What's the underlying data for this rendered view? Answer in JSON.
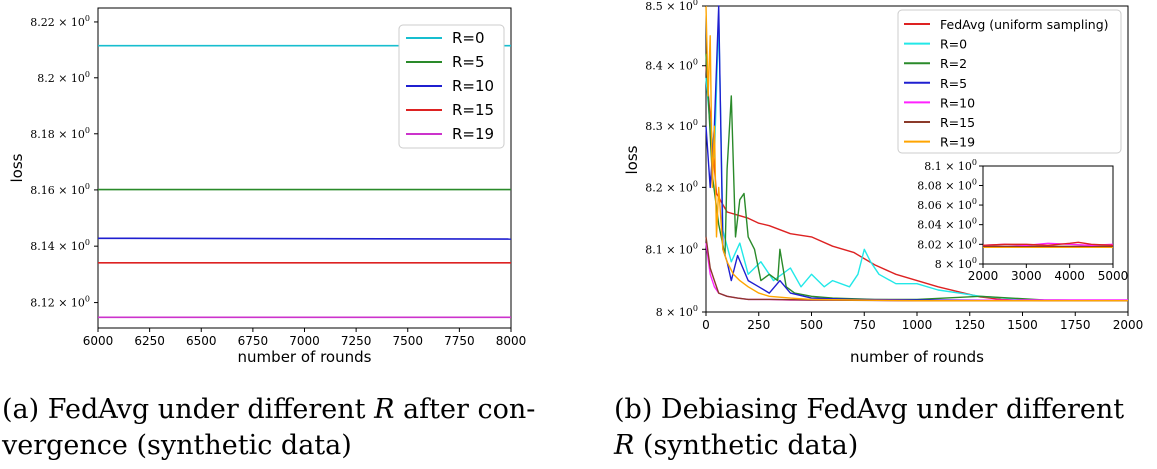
{
  "chart_data": [
    {
      "type": "line",
      "id": "a",
      "xlabel": "number of rounds",
      "ylabel": "loss",
      "xlim": [
        6000,
        8000
      ],
      "ylim": [
        8.111,
        8.225
      ],
      "yscale": "log",
      "xticks": [
        6000,
        6250,
        6500,
        6750,
        7000,
        7250,
        7500,
        7750,
        8000
      ],
      "yticks": [
        {
          "value": 8.12,
          "mantissa": "8.12"
        },
        {
          "value": 8.14,
          "mantissa": "8.14"
        },
        {
          "value": 8.16,
          "mantissa": "8.16"
        },
        {
          "value": 8.18,
          "mantissa": "8.18"
        },
        {
          "value": 8.2,
          "mantissa": "8.2"
        },
        {
          "value": 8.22,
          "mantissa": "8.22"
        }
      ],
      "tick_suffix": "× 10",
      "tick_exp": "0",
      "legend_position": "upper-right",
      "series": [
        {
          "name": "R=0",
          "color": "#17becf",
          "x": [
            6000,
            8000
          ],
          "y": [
            8.2115,
            8.2115
          ]
        },
        {
          "name": "R=5",
          "color": "#2a8a2a",
          "x": [
            6000,
            8000
          ],
          "y": [
            8.1601,
            8.1601
          ]
        },
        {
          "name": "R=10",
          "color": "#1f1fd0",
          "x": [
            6000,
            8000
          ],
          "y": [
            8.1428,
            8.1425
          ]
        },
        {
          "name": "R=15",
          "color": "#dd2222",
          "x": [
            6000,
            8000
          ],
          "y": [
            8.1341,
            8.1341
          ]
        },
        {
          "name": "R=19",
          "color": "#cc33cc",
          "x": [
            6000,
            8000
          ],
          "y": [
            8.1148,
            8.1148
          ]
        }
      ]
    },
    {
      "type": "line",
      "id": "b",
      "xlabel": "number of rounds",
      "ylabel": "loss",
      "xlim": [
        0,
        2000
      ],
      "ylim": [
        8.0,
        8.5
      ],
      "yscale": "log",
      "xticks": [
        0,
        250,
        500,
        750,
        1000,
        1250,
        1500,
        1750,
        2000
      ],
      "yticks": [
        {
          "value": 8.0,
          "mantissa": "8"
        },
        {
          "value": 8.1,
          "mantissa": "8.1"
        },
        {
          "value": 8.2,
          "mantissa": "8.2"
        },
        {
          "value": 8.3,
          "mantissa": "8.3"
        },
        {
          "value": 8.4,
          "mantissa": "8.4"
        },
        {
          "value": 8.5,
          "mantissa": "8.5"
        }
      ],
      "tick_suffix": "× 10",
      "tick_exp": "0",
      "legend_position": "upper-right",
      "series": [
        {
          "name": "FedAvg (uniform sampling)",
          "color": "#dd2222",
          "x": [
            0,
            50,
            100,
            150,
            200,
            250,
            300,
            400,
            500,
            600,
            700,
            800,
            900,
            1000,
            1100,
            1200,
            1300,
            1400,
            1600,
            2000
          ],
          "y": [
            8.4,
            8.19,
            8.16,
            8.155,
            8.15,
            8.142,
            8.138,
            8.125,
            8.12,
            8.105,
            8.095,
            8.075,
            8.06,
            8.05,
            8.04,
            8.032,
            8.024,
            8.02,
            8.018,
            8.018
          ]
        },
        {
          "name": "R=0",
          "color": "#22e8e8",
          "x": [
            0,
            20,
            40,
            60,
            80,
            120,
            160,
            200,
            260,
            320,
            400,
            450,
            500,
            560,
            600,
            680,
            720,
            750,
            780,
            820,
            900,
            1000,
            1100,
            1200,
            1300,
            1500,
            1700,
            2000
          ],
          "y": [
            8.38,
            8.3,
            8.25,
            8.48,
            8.13,
            8.08,
            8.11,
            8.06,
            8.08,
            8.05,
            8.07,
            8.04,
            8.06,
            8.04,
            8.05,
            8.04,
            8.06,
            8.1,
            8.08,
            8.06,
            8.045,
            8.045,
            8.035,
            8.03,
            8.025,
            8.02,
            8.018,
            8.018
          ]
        },
        {
          "name": "R=2",
          "color": "#2a8a2a",
          "x": [
            0,
            30,
            60,
            90,
            100,
            120,
            140,
            160,
            180,
            200,
            230,
            260,
            300,
            340,
            350,
            380,
            420,
            500,
            600,
            800,
            1000,
            1300,
            1600,
            2000
          ],
          "y": [
            8.42,
            8.22,
            8.14,
            8.09,
            8.23,
            8.35,
            8.12,
            8.18,
            8.19,
            8.12,
            8.1,
            8.05,
            8.06,
            8.05,
            8.1,
            8.04,
            8.03,
            8.025,
            8.022,
            8.02,
            8.02,
            8.025,
            8.019,
            8.018
          ]
        },
        {
          "name": "R=5",
          "color": "#1f1fd0",
          "x": [
            0,
            20,
            40,
            60,
            80,
            100,
            120,
            150,
            200,
            250,
            300,
            350,
            400,
            500,
            700,
            1000,
            2000
          ],
          "y": [
            8.3,
            8.2,
            8.3,
            8.5,
            8.1,
            8.08,
            8.05,
            8.09,
            8.05,
            8.04,
            8.03,
            8.05,
            8.03,
            8.022,
            8.02,
            8.019,
            8.018
          ]
        },
        {
          "name": "R=10",
          "color": "#ff22ff",
          "x": [
            0,
            20,
            40,
            60,
            100,
            150,
            200,
            300,
            400,
            600,
            1000,
            1500,
            2000
          ],
          "y": [
            8.11,
            8.06,
            8.04,
            8.03,
            8.025,
            8.022,
            8.02,
            8.02,
            8.019,
            8.019,
            8.018,
            8.019,
            8.019
          ]
        },
        {
          "name": "R=15",
          "color": "#8b3a2a",
          "x": [
            0,
            20,
            40,
            60,
            100,
            150,
            200,
            300,
            500,
            1000,
            2000
          ],
          "y": [
            8.12,
            8.07,
            8.05,
            8.03,
            8.025,
            8.022,
            8.02,
            8.02,
            8.019,
            8.018,
            8.018
          ]
        },
        {
          "name": "R=19",
          "color": "#ffa500",
          "x": [
            0,
            10,
            20,
            30,
            40,
            50,
            60,
            80,
            100,
            130,
            160,
            200,
            250,
            300,
            400,
            500,
            700,
            1000,
            2000
          ],
          "y": [
            8.5,
            8.35,
            8.45,
            8.2,
            8.3,
            8.12,
            8.2,
            8.1,
            8.08,
            8.06,
            8.05,
            8.04,
            8.03,
            8.025,
            8.022,
            8.02,
            8.019,
            8.018,
            8.018
          ]
        }
      ],
      "inset": {
        "xlim": [
          2000,
          5000
        ],
        "ylim": [
          8.0,
          8.1
        ],
        "xticks": [
          2000,
          3000,
          4000,
          5000
        ],
        "yticks": [
          {
            "value": 8.0,
            "mantissa": "8"
          },
          {
            "value": 8.02,
            "mantissa": "8.02"
          },
          {
            "value": 8.04,
            "mantissa": "8.04"
          },
          {
            "value": 8.06,
            "mantissa": "8.06"
          },
          {
            "value": 8.08,
            "mantissa": "8.08"
          },
          {
            "value": 8.1,
            "mantissa": "8.1"
          }
        ],
        "series": [
          {
            "name": "R=19",
            "color": "#ffa500",
            "x": [
              2000,
              5000
            ],
            "y": [
              8.017,
              8.017
            ]
          },
          {
            "name": "R=15",
            "color": "#8b3a2a",
            "x": [
              2000,
              5000
            ],
            "y": [
              8.018,
              8.018
            ]
          },
          {
            "name": "R=10",
            "color": "#ff22ff",
            "x": [
              2000,
              2500,
              3000,
              3500,
              4000,
              4500,
              5000
            ],
            "y": [
              8.019,
              8.02,
              8.019,
              8.021,
              8.02,
              8.019,
              8.02
            ]
          },
          {
            "name": "FedAvg (uniform sampling)",
            "color": "#dd2222",
            "x": [
              2000,
              2500,
              3000,
              3500,
              4000,
              4200,
              4500,
              5000
            ],
            "y": [
              8.019,
              8.02,
              8.02,
              8.019,
              8.021,
              8.022,
              8.02,
              8.019
            ]
          }
        ]
      }
    }
  ],
  "captions": {
    "a": {
      "prefix": "(a) FedAvg under different ",
      "var": "R",
      "suffix": " after con-",
      "line2": "vergence (synthetic data)"
    },
    "b": {
      "line1": "(b) Debiasing FedAvg under different",
      "var": "R",
      "suffix": " (synthetic data)"
    }
  }
}
